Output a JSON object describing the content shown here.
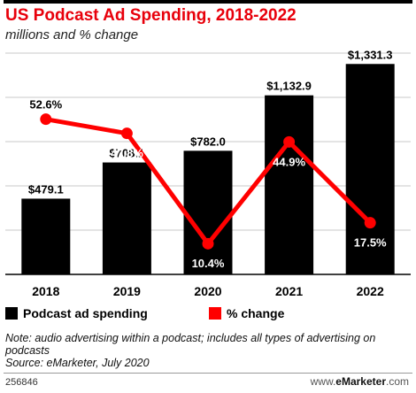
{
  "header": {
    "title": "US Podcast Ad Spending, 2018-2022",
    "subtitle": "millions and % change"
  },
  "colors": {
    "bars": "#000000",
    "line": "#ff0000",
    "title": "#e8000b",
    "grid": "#c8c8c8"
  },
  "chart_data": {
    "type": "bar",
    "categories": [
      "2018",
      "2019",
      "2020",
      "2021",
      "2022"
    ],
    "series": [
      {
        "name": "Podcast ad spending",
        "type": "bar",
        "values": [
          479.1,
          708.1,
          782.0,
          1132.9,
          1331.3
        ],
        "labels": [
          "$479.1",
          "$708.1",
          "$782.0",
          "$1,132.9",
          "$1,331.3"
        ]
      },
      {
        "name": "% change",
        "type": "line",
        "values": [
          52.6,
          47.8,
          10.4,
          44.9,
          17.5
        ],
        "labels": [
          "52.6%",
          "47.8%",
          "10.4%",
          "44.9%",
          "17.5%"
        ]
      }
    ],
    "grid": true
  },
  "legend": {
    "bar_label": "Podcast ad spending",
    "line_label": "% change"
  },
  "note": {
    "line1": "Note: audio advertising within a podcast; includes all types of advertising on podcasts",
    "line2": "Source: eMarketer, July 2020"
  },
  "footer": {
    "chart_id": "256846",
    "brand_prefix": "www.",
    "brand_name": "eMarketer",
    "brand_suffix": ".com"
  }
}
